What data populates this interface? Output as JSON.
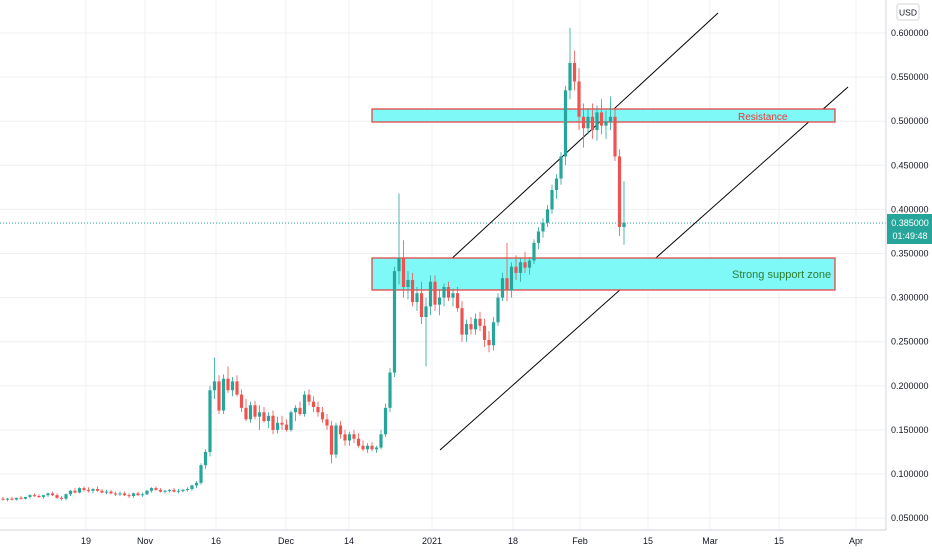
{
  "currency_button": {
    "label": "USD"
  },
  "price_badge": {
    "price": "0.385000",
    "countdown": "01:49:48",
    "color": "#26a69a"
  },
  "colors": {
    "up": "#26a69a",
    "down": "#ef5350",
    "zone_fill": "#7ff8f8",
    "zone_border": "#e53935",
    "channel_line": "#000000",
    "grid": "#eef0f3"
  },
  "annotations": {
    "resistance": "Resistance",
    "support": "Strong support zone"
  },
  "chart_data": {
    "type": "candlestick",
    "currency": "USD",
    "last_price": 0.385,
    "x_ticks": [
      "19",
      "Nov",
      "16",
      "Dec",
      "14",
      "2021",
      "18",
      "Feb",
      "15",
      "Mar",
      "15",
      "Apr"
    ],
    "y_ticks": [
      "0.600000",
      "0.550000",
      "0.500000",
      "0.450000",
      "0.400000",
      "0.350000",
      "0.300000",
      "0.250000",
      "0.200000",
      "0.150000",
      "0.100000",
      "0.050000"
    ],
    "y_range": [
      0.045,
      0.64
    ],
    "grid": true,
    "candles": [
      [
        0.072,
        0.074,
        0.07,
        0.071
      ],
      [
        0.071,
        0.073,
        0.069,
        0.072
      ],
      [
        0.072,
        0.074,
        0.07,
        0.071
      ],
      [
        0.071,
        0.073,
        0.07,
        0.073
      ],
      [
        0.073,
        0.075,
        0.071,
        0.072
      ],
      [
        0.072,
        0.074,
        0.071,
        0.074
      ],
      [
        0.074,
        0.077,
        0.072,
        0.076
      ],
      [
        0.076,
        0.078,
        0.074,
        0.075
      ],
      [
        0.075,
        0.077,
        0.073,
        0.074
      ],
      [
        0.074,
        0.076,
        0.072,
        0.076
      ],
      [
        0.076,
        0.079,
        0.074,
        0.078
      ],
      [
        0.078,
        0.08,
        0.075,
        0.076
      ],
      [
        0.076,
        0.078,
        0.072,
        0.073
      ],
      [
        0.073,
        0.075,
        0.07,
        0.072
      ],
      [
        0.072,
        0.078,
        0.07,
        0.077
      ],
      [
        0.077,
        0.082,
        0.075,
        0.081
      ],
      [
        0.081,
        0.084,
        0.078,
        0.079
      ],
      [
        0.079,
        0.085,
        0.078,
        0.084
      ],
      [
        0.084,
        0.086,
        0.08,
        0.082
      ],
      [
        0.082,
        0.085,
        0.079,
        0.081
      ],
      [
        0.081,
        0.084,
        0.078,
        0.083
      ],
      [
        0.083,
        0.086,
        0.08,
        0.081
      ],
      [
        0.081,
        0.083,
        0.078,
        0.079
      ],
      [
        0.079,
        0.082,
        0.077,
        0.08
      ],
      [
        0.08,
        0.082,
        0.077,
        0.078
      ],
      [
        0.078,
        0.08,
        0.075,
        0.077
      ],
      [
        0.077,
        0.08,
        0.075,
        0.078
      ],
      [
        0.078,
        0.08,
        0.075,
        0.076
      ],
      [
        0.076,
        0.078,
        0.073,
        0.075
      ],
      [
        0.075,
        0.079,
        0.073,
        0.078
      ],
      [
        0.078,
        0.08,
        0.075,
        0.076
      ],
      [
        0.076,
        0.079,
        0.074,
        0.077
      ],
      [
        0.077,
        0.082,
        0.076,
        0.081
      ],
      [
        0.081,
        0.085,
        0.079,
        0.084
      ],
      [
        0.084,
        0.086,
        0.081,
        0.082
      ],
      [
        0.082,
        0.084,
        0.079,
        0.08
      ],
      [
        0.08,
        0.082,
        0.078,
        0.081
      ],
      [
        0.081,
        0.083,
        0.079,
        0.082
      ],
      [
        0.082,
        0.084,
        0.079,
        0.08
      ],
      [
        0.08,
        0.083,
        0.078,
        0.081
      ],
      [
        0.081,
        0.083,
        0.079,
        0.082
      ],
      [
        0.082,
        0.085,
        0.08,
        0.083
      ],
      [
        0.083,
        0.088,
        0.081,
        0.087
      ],
      [
        0.087,
        0.092,
        0.084,
        0.09
      ],
      [
        0.09,
        0.112,
        0.088,
        0.11
      ],
      [
        0.11,
        0.128,
        0.106,
        0.125
      ],
      [
        0.125,
        0.2,
        0.12,
        0.195
      ],
      [
        0.195,
        0.232,
        0.185,
        0.205
      ],
      [
        0.205,
        0.212,
        0.168,
        0.172
      ],
      [
        0.172,
        0.213,
        0.168,
        0.208
      ],
      [
        0.208,
        0.222,
        0.192,
        0.195
      ],
      [
        0.195,
        0.21,
        0.188,
        0.205
      ],
      [
        0.205,
        0.212,
        0.188,
        0.19
      ],
      [
        0.19,
        0.196,
        0.17,
        0.175
      ],
      [
        0.175,
        0.185,
        0.16,
        0.162
      ],
      [
        0.162,
        0.182,
        0.158,
        0.178
      ],
      [
        0.178,
        0.183,
        0.162,
        0.165
      ],
      [
        0.165,
        0.178,
        0.15,
        0.17
      ],
      [
        0.17,
        0.176,
        0.158,
        0.16
      ],
      [
        0.16,
        0.17,
        0.152,
        0.166
      ],
      [
        0.166,
        0.172,
        0.145,
        0.15
      ],
      [
        0.15,
        0.165,
        0.146,
        0.158
      ],
      [
        0.158,
        0.166,
        0.15,
        0.156
      ],
      [
        0.156,
        0.162,
        0.148,
        0.15
      ],
      [
        0.15,
        0.172,
        0.148,
        0.17
      ],
      [
        0.17,
        0.178,
        0.16,
        0.175
      ],
      [
        0.175,
        0.182,
        0.166,
        0.168
      ],
      [
        0.168,
        0.194,
        0.165,
        0.19
      ],
      [
        0.19,
        0.196,
        0.178,
        0.182
      ],
      [
        0.182,
        0.188,
        0.17,
        0.176
      ],
      [
        0.176,
        0.182,
        0.165,
        0.17
      ],
      [
        0.17,
        0.176,
        0.158,
        0.162
      ],
      [
        0.162,
        0.168,
        0.15,
        0.155
      ],
      [
        0.155,
        0.16,
        0.112,
        0.122
      ],
      [
        0.122,
        0.158,
        0.118,
        0.155
      ],
      [
        0.155,
        0.16,
        0.14,
        0.145
      ],
      [
        0.145,
        0.15,
        0.132,
        0.138
      ],
      [
        0.138,
        0.148,
        0.132,
        0.145
      ],
      [
        0.145,
        0.15,
        0.135,
        0.14
      ],
      [
        0.14,
        0.146,
        0.13,
        0.132
      ],
      [
        0.132,
        0.138,
        0.126,
        0.128
      ],
      [
        0.128,
        0.135,
        0.124,
        0.132
      ],
      [
        0.132,
        0.136,
        0.126,
        0.128
      ],
      [
        0.128,
        0.132,
        0.124,
        0.13
      ],
      [
        0.13,
        0.15,
        0.128,
        0.145
      ],
      [
        0.145,
        0.18,
        0.142,
        0.175
      ],
      [
        0.175,
        0.22,
        0.17,
        0.215
      ],
      [
        0.215,
        0.335,
        0.21,
        0.33
      ],
      [
        0.33,
        0.418,
        0.315,
        0.345
      ],
      [
        0.345,
        0.365,
        0.3,
        0.312
      ],
      [
        0.312,
        0.33,
        0.298,
        0.32
      ],
      [
        0.32,
        0.328,
        0.29,
        0.295
      ],
      [
        0.295,
        0.312,
        0.285,
        0.305
      ],
      [
        0.305,
        0.318,
        0.27,
        0.278
      ],
      [
        0.278,
        0.3,
        0.222,
        0.29
      ],
      [
        0.29,
        0.325,
        0.28,
        0.318
      ],
      [
        0.318,
        0.325,
        0.285,
        0.292
      ],
      [
        0.292,
        0.308,
        0.28,
        0.3
      ],
      [
        0.3,
        0.316,
        0.29,
        0.312
      ],
      [
        0.312,
        0.318,
        0.296,
        0.3
      ],
      [
        0.3,
        0.31,
        0.29,
        0.305
      ],
      [
        0.305,
        0.312,
        0.284,
        0.288
      ],
      [
        0.288,
        0.296,
        0.25,
        0.258
      ],
      [
        0.258,
        0.275,
        0.25,
        0.27
      ],
      [
        0.27,
        0.278,
        0.258,
        0.264
      ],
      [
        0.264,
        0.282,
        0.258,
        0.276
      ],
      [
        0.276,
        0.284,
        0.262,
        0.268
      ],
      [
        0.268,
        0.276,
        0.244,
        0.252
      ],
      [
        0.252,
        0.262,
        0.238,
        0.246
      ],
      [
        0.246,
        0.278,
        0.24,
        0.272
      ],
      [
        0.272,
        0.305,
        0.268,
        0.3
      ],
      [
        0.3,
        0.328,
        0.296,
        0.322
      ],
      [
        0.322,
        0.362,
        0.296,
        0.308
      ],
      [
        0.308,
        0.34,
        0.3,
        0.335
      ],
      [
        0.335,
        0.348,
        0.32,
        0.328
      ],
      [
        0.328,
        0.345,
        0.318,
        0.34
      ],
      [
        0.34,
        0.352,
        0.328,
        0.334
      ],
      [
        0.334,
        0.346,
        0.326,
        0.342
      ],
      [
        0.342,
        0.366,
        0.338,
        0.362
      ],
      [
        0.362,
        0.38,
        0.355,
        0.375
      ],
      [
        0.375,
        0.39,
        0.368,
        0.385
      ],
      [
        0.385,
        0.405,
        0.38,
        0.4
      ],
      [
        0.4,
        0.428,
        0.395,
        0.422
      ],
      [
        0.422,
        0.44,
        0.412,
        0.435
      ],
      [
        0.435,
        0.465,
        0.428,
        0.46
      ],
      [
        0.46,
        0.54,
        0.45,
        0.535
      ],
      [
        0.535,
        0.606,
        0.525,
        0.566
      ],
      [
        0.566,
        0.58,
        0.535,
        0.545
      ],
      [
        0.545,
        0.56,
        0.49,
        0.505
      ],
      [
        0.505,
        0.52,
        0.47,
        0.492
      ],
      [
        0.492,
        0.515,
        0.485,
        0.505
      ],
      [
        0.505,
        0.52,
        0.48,
        0.49
      ],
      [
        0.49,
        0.518,
        0.478,
        0.51
      ],
      [
        0.51,
        0.525,
        0.485,
        0.495
      ],
      [
        0.495,
        0.512,
        0.48,
        0.5
      ],
      [
        0.5,
        0.528,
        0.49,
        0.505
      ],
      [
        0.505,
        0.515,
        0.455,
        0.46
      ],
      [
        0.46,
        0.468,
        0.37,
        0.38
      ],
      [
        0.38,
        0.432,
        0.36,
        0.385
      ]
    ]
  }
}
